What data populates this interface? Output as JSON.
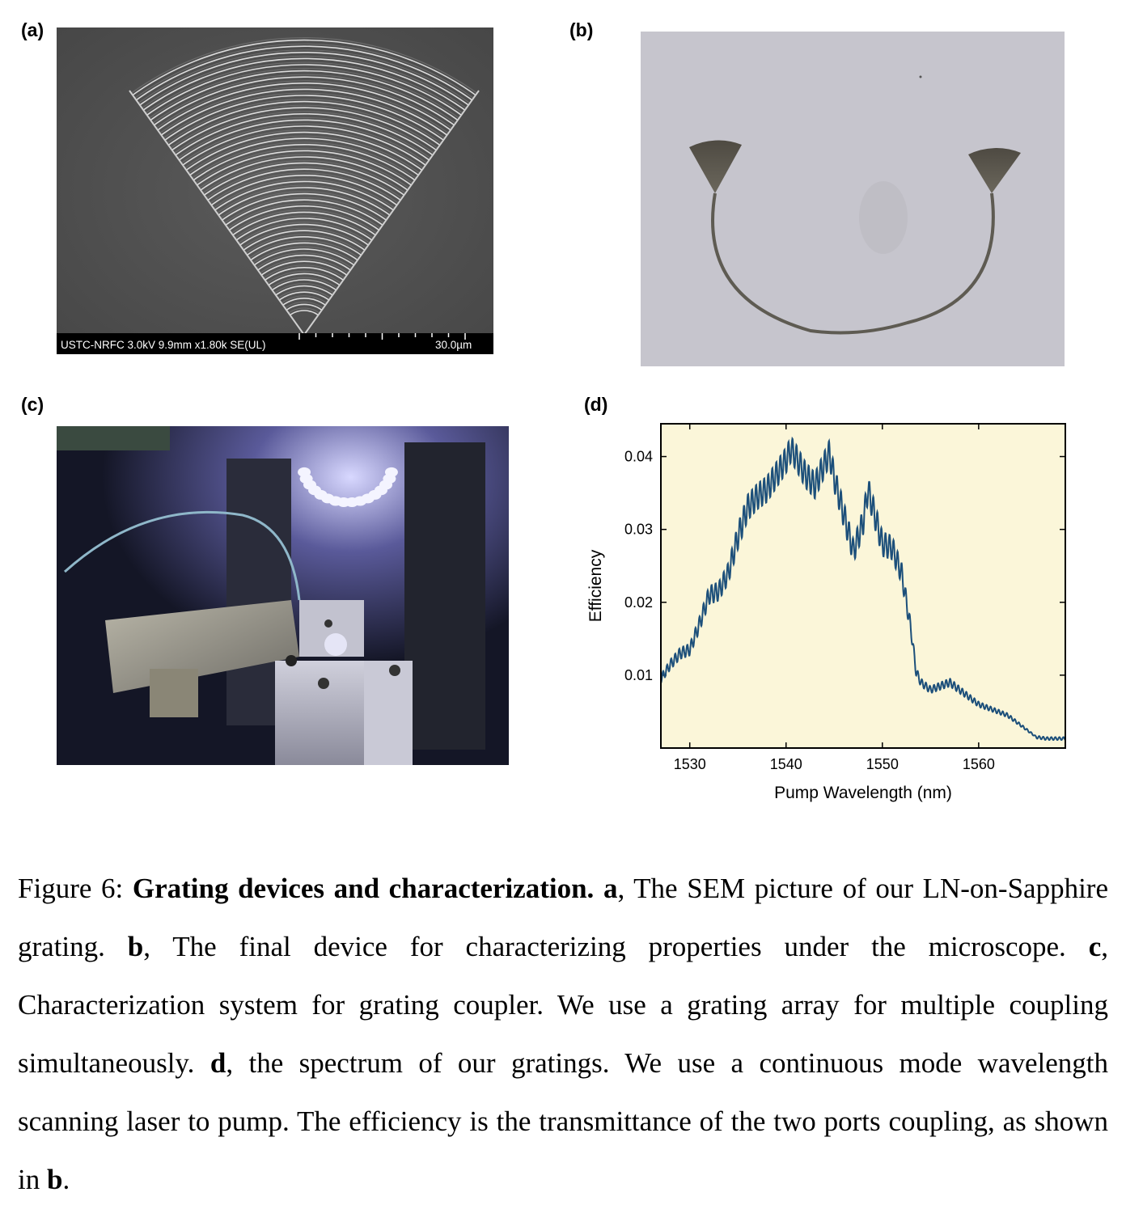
{
  "panels": {
    "a": {
      "label": "(a)",
      "sem_info": "USTC-NRFC 3.0kV 9.9mm x1.80k SE(UL)",
      "scale_bar": "30.0µm"
    },
    "b": {
      "label": "(b)"
    },
    "c": {
      "label": "(c)"
    },
    "d": {
      "label": "(d)"
    }
  },
  "chart_data": {
    "type": "line",
    "title": "",
    "xlabel": "Pump Wavelength (nm)",
    "ylabel": "Efficiency",
    "xlim": [
      1527,
      1569
    ],
    "ylim": [
      0.0,
      0.0445
    ],
    "xticks": [
      1530,
      1540,
      1550,
      1560
    ],
    "yticks": [
      0.01,
      0.02,
      0.03,
      0.04
    ],
    "xtick_labels": [
      "1530",
      "1540",
      "1550",
      "1560"
    ],
    "ytick_labels": [
      "0.01",
      "0.02",
      "0.03",
      "0.04"
    ],
    "plot_background": "#fbf6d9",
    "line_color": "#1c4f7a",
    "grid": false,
    "series": [
      {
        "x": [
          1527,
          1528,
          1529,
          1530,
          1531,
          1532,
          1533,
          1534,
          1535,
          1536,
          1537,
          1538,
          1539,
          1540,
          1540.5,
          1541,
          1542,
          1543,
          1544,
          1544.5,
          1545,
          1546,
          1547,
          1548,
          1548.5,
          1549,
          1550,
          1551,
          1552,
          1553,
          1553.5,
          1554,
          1555,
          1556,
          1557,
          1558,
          1559,
          1560,
          1561,
          1562,
          1563,
          1564,
          1565,
          1566,
          1567,
          1568,
          1569
        ],
        "y": [
          0.0095,
          0.0115,
          0.013,
          0.0135,
          0.017,
          0.021,
          0.0215,
          0.024,
          0.029,
          0.033,
          0.0345,
          0.0355,
          0.0375,
          0.0395,
          0.041,
          0.04,
          0.0375,
          0.036,
          0.039,
          0.0405,
          0.037,
          0.032,
          0.027,
          0.031,
          0.0355,
          0.033,
          0.028,
          0.0275,
          0.024,
          0.016,
          0.0105,
          0.009,
          0.008,
          0.0085,
          0.009,
          0.008,
          0.007,
          0.006,
          0.0055,
          0.005,
          0.0045,
          0.0035,
          0.0025,
          0.0015,
          0.0013,
          0.0013,
          0.0013
        ]
      }
    ]
  },
  "caption": {
    "figure_label": "Figure 6:",
    "title": "Grating devices and characterization.",
    "part_a_letter": "a",
    "part_a_text": ", The SEM picture of our LN-on-Sapphire grating.",
    "part_b_letter": "b",
    "part_b_text": ", The final device for characterizing properties under the microscope.",
    "part_c_letter": "c",
    "part_c_text": ", Characterization system for grating coupler. We use a grating array for multiple coupling simultaneously.",
    "part_d_letter": "d",
    "part_d_text": ", the spectrum of our gratings. We use a continuous mode wavelength scanning laser to pump. The efficiency is the transmittance of the two ports coupling, as shown in",
    "final_ref": "b",
    "final_period": "."
  }
}
